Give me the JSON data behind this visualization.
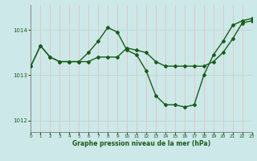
{
  "background_color": "#cce8e8",
  "grid_color_v": "#f0b8b8",
  "grid_color_h": "#b8d8d8",
  "line_color": "#1a5c1a",
  "title": "Graphe pression niveau de la mer (hPa)",
  "xlim": [
    0,
    23
  ],
  "ylim": [
    1011.75,
    1014.55
  ],
  "yticks": [
    1012,
    1013,
    1014
  ],
  "xticks": [
    0,
    1,
    2,
    3,
    4,
    5,
    6,
    7,
    8,
    9,
    10,
    11,
    12,
    13,
    14,
    15,
    16,
    17,
    18,
    19,
    20,
    21,
    22,
    23
  ],
  "series": [
    {
      "x": [
        0,
        1,
        2,
        3,
        4,
        5,
        6,
        7,
        8,
        9,
        10,
        11,
        12,
        13,
        14,
        15,
        16,
        17,
        18,
        19,
        20,
        21,
        22,
        23
      ],
      "y": [
        1013.2,
        1013.65,
        1013.4,
        1013.3,
        1013.3,
        1013.3,
        1013.3,
        1013.4,
        1013.4,
        1013.4,
        1013.6,
        1013.55,
        1013.5,
        1013.3,
        1013.2,
        1013.2,
        1013.2,
        1013.2,
        1013.2,
        1013.3,
        1013.5,
        1013.8,
        1014.15,
        1014.2
      ]
    },
    {
      "x": [
        0,
        1,
        2,
        3,
        4,
        5,
        6,
        7,
        8,
        9,
        10,
        11,
        12,
        13,
        14,
        15,
        16,
        17,
        18,
        19,
        20,
        21,
        22,
        23
      ],
      "y": [
        1013.2,
        1013.65,
        1013.4,
        1013.3,
        1013.3,
        1013.3,
        1013.5,
        1013.75,
        1014.05,
        1013.95,
        1013.55,
        1013.45,
        1013.1,
        1012.55,
        1012.35,
        1012.35,
        1012.3,
        1012.35,
        1013.0,
        1013.45,
        1013.75,
        1014.1,
        1014.2,
        1014.25
      ]
    }
  ],
  "markersize": 2,
  "linewidth": 1.0
}
